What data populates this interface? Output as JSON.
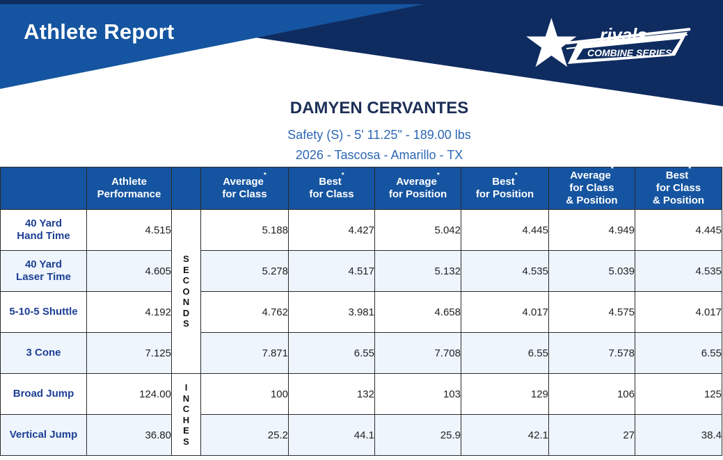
{
  "header": {
    "title": "Athlete Report",
    "logo_word": "rivals",
    "logo_sub": "COMBINE SERIES"
  },
  "athlete": {
    "name": "DAMYEN CERVANTES",
    "details": "Safety (S) -  5' 11.25\" - 189.00 lbs",
    "school": "2026 - Tascosa - Amarillo - TX"
  },
  "table": {
    "columns": [
      {
        "lines": [
          "Athlete",
          "Performance"
        ],
        "star": false
      },
      {
        "lines": [
          "Average",
          "for Class"
        ],
        "star": true
      },
      {
        "lines": [
          "Best",
          "for Class"
        ],
        "star": true
      },
      {
        "lines": [
          "Average",
          "for Position"
        ],
        "star": true
      },
      {
        "lines": [
          "Best",
          "for Position"
        ],
        "star": true
      },
      {
        "lines": [
          "Average",
          "for Class",
          "& Position"
        ],
        "star": true
      },
      {
        "lines": [
          "Best",
          "for Class",
          "& Position"
        ],
        "star": true
      }
    ],
    "units": {
      "seconds": [
        "S",
        "E",
        "C",
        "O",
        "N",
        "D",
        "S"
      ],
      "inches": [
        "I",
        "N",
        "C",
        "H",
        "E",
        "S"
      ]
    },
    "rows": [
      {
        "label": "40 Yard Hand Time",
        "values": [
          "4.515",
          "5.188",
          "4.427",
          "5.042",
          "4.445",
          "4.949",
          "4.445"
        ]
      },
      {
        "label": "40 Yard Laser Time",
        "values": [
          "4.605",
          "5.278",
          "4.517",
          "5.132",
          "4.535",
          "5.039",
          "4.535"
        ]
      },
      {
        "label": "5-10-5 Shuttle",
        "values": [
          "4.192",
          "4.762",
          "3.981",
          "4.658",
          "4.017",
          "4.575",
          "4.017"
        ]
      },
      {
        "label": "3 Cone",
        "values": [
          "7.125",
          "7.871",
          "6.55",
          "7.708",
          "6.55",
          "7.578",
          "6.55"
        ]
      },
      {
        "label": "Broad Jump",
        "values": [
          "124.00",
          "100",
          "132",
          "103",
          "129",
          "106",
          "125"
        ]
      },
      {
        "label": "Vertical Jump",
        "values": [
          "36.80",
          "25.2",
          "44.1",
          "25.9",
          "42.1",
          "27",
          "38.4"
        ]
      }
    ]
  },
  "colors": {
    "banner_dark": "#0f2c60",
    "banner_blue": "#1554a0",
    "label_blue": "#1c3f94",
    "alt_row": "#eef5fd"
  }
}
